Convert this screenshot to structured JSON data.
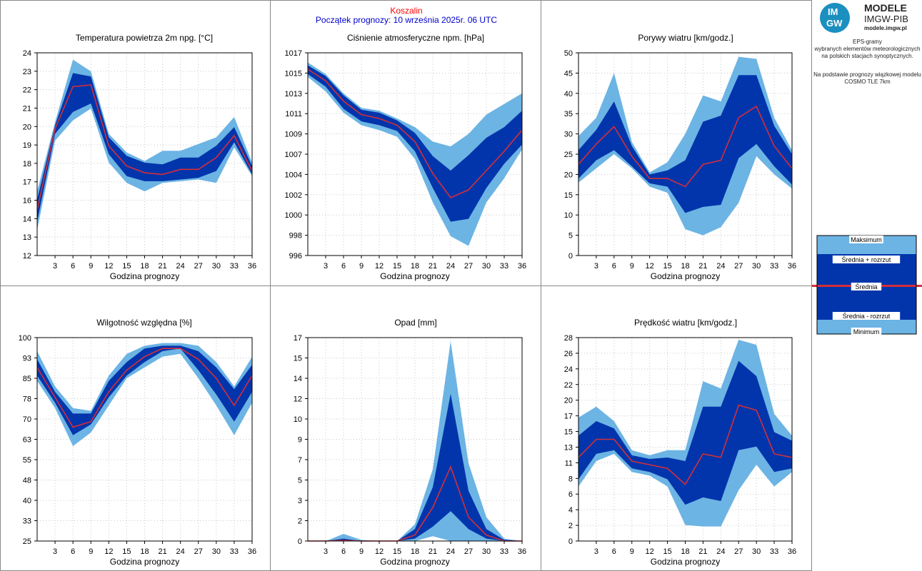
{
  "header": {
    "city": "Koszalin",
    "forecast_start": "Początek prognozy: 10 września 2025r. 06 UTC"
  },
  "sidebar": {
    "logo_top": "IM",
    "logo_bottom": "GW",
    "brand_line1": "MODELE",
    "brand_line2": "IMGW-PIB",
    "brand_url": "modele.imgw.pl",
    "desc_lines": [
      "EPS-gramy",
      "wybranych elementów meteorologicznych",
      "na polskich stacjach  synoptycznych."
    ],
    "model_lines": [
      "Na podstawie prognozy wiązkowej modelu",
      "COSMO TLE 7km"
    ],
    "legend": {
      "max": "Maksimum",
      "mean_plus": "Średnia + rozrzut",
      "mean": "Średnia",
      "mean_minus": "Średnia - rozrzut",
      "min": "Minimum"
    }
  },
  "colors": {
    "light_band": "#6cb4e4",
    "dark_band": "#0235ab",
    "mean_line": "#d42e3a"
  },
  "chart_data": [
    {
      "type": "area",
      "title": "Temperatura powietrza 2m npg. [°C]",
      "xlabel": "Godzina prognozy",
      "x": [
        0,
        3,
        6,
        9,
        12,
        15,
        18,
        21,
        24,
        27,
        30,
        33,
        36
      ],
      "xticks": [
        3,
        6,
        9,
        12,
        15,
        18,
        21,
        24,
        27,
        30,
        33,
        36
      ],
      "ylim": [
        12,
        24
      ],
      "yticks": [
        "12",
        "13",
        "14",
        "16",
        "17",
        "18",
        "19",
        "20",
        "21",
        "22",
        "23",
        "24"
      ],
      "min": [
        13.5,
        18.8,
        20.0,
        20.7,
        17.5,
        16.3,
        15.8,
        16.3,
        16.4,
        16.5,
        16.3,
        18.4,
        16.7
      ],
      "lower": [
        14.0,
        19.2,
        20.5,
        21.0,
        18.0,
        16.7,
        16.4,
        16.4,
        16.5,
        16.6,
        17.0,
        18.7,
        16.8
      ],
      "mean": [
        14.7,
        19.5,
        22.0,
        22.1,
        18.5,
        17.3,
        16.9,
        16.8,
        17.1,
        17.1,
        17.8,
        19.1,
        17.0
      ],
      "upper": [
        15.3,
        19.7,
        22.8,
        22.6,
        19.0,
        17.9,
        17.5,
        17.4,
        17.8,
        17.8,
        18.5,
        19.6,
        17.3
      ],
      "max": [
        15.8,
        19.9,
        23.6,
        22.9,
        19.2,
        18.1,
        17.6,
        18.2,
        18.2,
        18.6,
        19.0,
        20.2,
        17.5
      ]
    },
    {
      "type": "area",
      "title": "Ciśnienie atmosferyczne npm. [hPa]",
      "xlabel": "Godzina prognozy",
      "x": [
        0,
        3,
        6,
        9,
        12,
        15,
        18,
        21,
        24,
        27,
        30,
        33,
        36
      ],
      "xticks": [
        3,
        6,
        9,
        12,
        15,
        18,
        21,
        24,
        27,
        30,
        33,
        36
      ],
      "ylim": [
        996,
        1017
      ],
      "yticks": [
        "996",
        "998",
        "1000",
        "1002",
        "1004",
        "1007",
        "1009",
        "1011",
        "1013",
        "1015",
        "1017"
      ],
      "min": [
        1014.5,
        1013.0,
        1010.8,
        1009.5,
        1009.0,
        1008.3,
        1006.0,
        1001.5,
        998.0,
        997.0,
        1001.5,
        1004.0,
        1007.0
      ],
      "lower": [
        1014.8,
        1013.5,
        1011.2,
        1009.9,
        1009.5,
        1008.9,
        1006.8,
        1003.0,
        999.5,
        999.8,
        1003.0,
        1005.5,
        1007.5
      ],
      "mean": [
        1015.3,
        1014.1,
        1012.0,
        1010.6,
        1010.2,
        1009.5,
        1007.8,
        1004.5,
        1002.0,
        1002.8,
        1004.8,
        1006.8,
        1009.0
      ],
      "upper": [
        1015.7,
        1014.6,
        1012.6,
        1011.1,
        1010.8,
        1010.0,
        1008.7,
        1006.3,
        1004.8,
        1006.4,
        1008.2,
        1009.3,
        1011.0
      ],
      "max": [
        1016.0,
        1014.8,
        1012.8,
        1011.3,
        1011.0,
        1010.2,
        1009.3,
        1007.8,
        1007.3,
        1008.6,
        1010.6,
        1011.7,
        1012.8
      ]
    },
    {
      "type": "area",
      "title": "Porywy wiatru [km/godz.]",
      "xlabel": "Godzina prognozy",
      "x": [
        0,
        3,
        6,
        9,
        12,
        15,
        18,
        21,
        24,
        27,
        30,
        33,
        36
      ],
      "xticks": [
        3,
        6,
        9,
        12,
        15,
        18,
        21,
        24,
        27,
        30,
        33,
        36
      ],
      "ylim": [
        0,
        50
      ],
      "yticks": [
        "0",
        "5",
        "10",
        "15",
        "20",
        "25",
        "30",
        "35",
        "40",
        "45",
        "50"
      ],
      "min": [
        18.0,
        21.5,
        25.0,
        21.5,
        17.0,
        15.5,
        6.5,
        5.0,
        7.0,
        13.0,
        24.5,
        20.0,
        16.5
      ],
      "lower": [
        19.0,
        23.5,
        26.0,
        22.0,
        17.8,
        17.0,
        10.5,
        12.0,
        12.5,
        24.0,
        27.5,
        22.0,
        17.5
      ],
      "mean": [
        22.5,
        27.5,
        31.8,
        24.5,
        19.0,
        19.0,
        17.0,
        22.5,
        23.5,
        34.0,
        36.8,
        27.0,
        21.5
      ],
      "upper": [
        26.0,
        31.0,
        38.0,
        27.0,
        20.0,
        21.0,
        23.5,
        33.0,
        34.5,
        44.5,
        44.5,
        32.0,
        25.0
      ],
      "max": [
        29.5,
        34.0,
        45.0,
        28.0,
        20.5,
        23.0,
        30.0,
        39.5,
        38.0,
        49.0,
        48.5,
        34.0,
        26.0
      ]
    },
    {
      "type": "area",
      "title": "Wilgotność względna [%]",
      "xlabel": "Godzina prognozy",
      "x": [
        0,
        3,
        6,
        9,
        12,
        15,
        18,
        21,
        24,
        27,
        30,
        33,
        36
      ],
      "xticks": [
        3,
        6,
        9,
        12,
        15,
        18,
        21,
        24,
        27,
        30,
        33,
        36
      ],
      "ylim": [
        25,
        100
      ],
      "yticks": [
        "25",
        "33",
        "40",
        "48",
        "55",
        "63",
        "70",
        "78",
        "85",
        "93",
        "100"
      ],
      "min": [
        84,
        74,
        60,
        65,
        75,
        85,
        89,
        93,
        94,
        85,
        75,
        64,
        76
      ],
      "lower": [
        86,
        76,
        64,
        68,
        78,
        86,
        91,
        95,
        96,
        88,
        79,
        69,
        80
      ],
      "mean": [
        89,
        78,
        67,
        69,
        80,
        88,
        93,
        96,
        96,
        92,
        85,
        75,
        86
      ],
      "upper": [
        92,
        80,
        72,
        72,
        84,
        91,
        96,
        97,
        97,
        95,
        89,
        81,
        90
      ],
      "max": [
        95,
        82,
        74,
        73,
        86,
        94,
        97,
        98,
        98,
        97,
        91,
        82,
        93
      ]
    },
    {
      "type": "area",
      "title": "Opad [mm]",
      "xlabel": "Godzina prognozy",
      "x": [
        0,
        3,
        6,
        9,
        12,
        15,
        18,
        21,
        24,
        27,
        30,
        33,
        36
      ],
      "xticks": [
        3,
        6,
        9,
        12,
        15,
        18,
        21,
        24,
        27,
        30,
        33,
        36
      ],
      "ylim": [
        0,
        17
      ],
      "yticks": [
        "0",
        "2",
        "3",
        "5",
        "7",
        "9",
        "10",
        "12",
        "14",
        "15",
        "17"
      ],
      "min": [
        0,
        0,
        0,
        0,
        0,
        0,
        0,
        0.4,
        0,
        0,
        0,
        0,
        0
      ],
      "lower": [
        0,
        0,
        0,
        0,
        0,
        0,
        0.2,
        1.2,
        2.5,
        1.0,
        0.2,
        0,
        0
      ],
      "mean": [
        0,
        0,
        0.05,
        0,
        0,
        0,
        0.5,
        2.8,
        6.2,
        2.0,
        0.5,
        0,
        0
      ],
      "upper": [
        0,
        0,
        0.2,
        0,
        0,
        0,
        1.0,
        4.5,
        12.3,
        4.2,
        1.0,
        0.1,
        0
      ],
      "max": [
        0,
        0,
        0.6,
        0.1,
        0,
        0,
        1.4,
        6.0,
        16.7,
        6.5,
        2.0,
        0.2,
        0
      ]
    },
    {
      "type": "area",
      "title": "Prędkość wiatru [km/godz.]",
      "xlabel": "Godzina prognozy",
      "x": [
        0,
        3,
        6,
        9,
        12,
        15,
        18,
        21,
        24,
        27,
        30,
        33,
        36
      ],
      "xticks": [
        3,
        6,
        9,
        12,
        15,
        18,
        21,
        24,
        27,
        30,
        33,
        36
      ],
      "ylim": [
        0,
        28
      ],
      "yticks": [
        "0",
        "2",
        "4",
        "6",
        "8",
        "11",
        "13",
        "15",
        "17",
        "20",
        "22",
        "24",
        "26",
        "28"
      ],
      "min": [
        7.5,
        11.0,
        12.0,
        9.5,
        9.0,
        7.5,
        2.2,
        2.0,
        2.0,
        7.0,
        10.5,
        7.5,
        9.5
      ],
      "lower": [
        8.5,
        12.0,
        12.5,
        10.0,
        9.5,
        8.5,
        5.0,
        6.0,
        5.5,
        12.5,
        13.0,
        9.5,
        10.0
      ],
      "mean": [
        11.5,
        14.0,
        14.0,
        11.0,
        10.5,
        10.0,
        7.8,
        12.0,
        11.5,
        18.7,
        18.0,
        12.0,
        11.5
      ],
      "upper": [
        14.5,
        16.5,
        15.5,
        11.8,
        11.3,
        11.5,
        11.0,
        18.5,
        18.5,
        24.8,
        22.7,
        15.0,
        13.8
      ],
      "max": [
        17.0,
        18.5,
        16.5,
        12.5,
        11.8,
        12.5,
        12.5,
        22.0,
        21.0,
        27.7,
        27.0,
        17.5,
        14.5
      ]
    }
  ]
}
